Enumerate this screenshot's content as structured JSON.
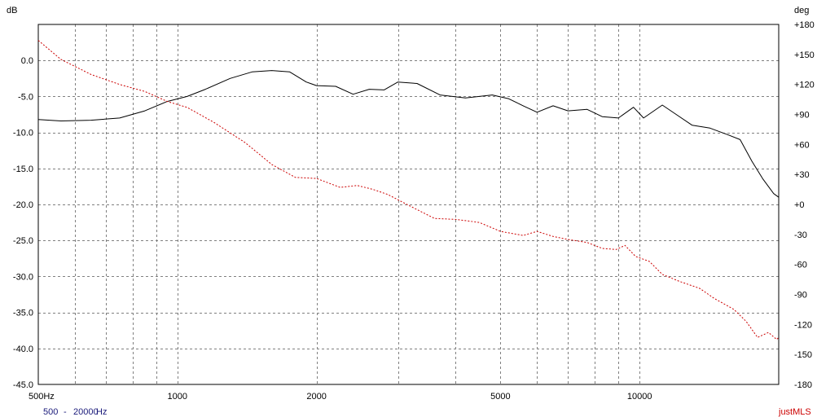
{
  "footer": {
    "range_from": "500",
    "range_sep": "-",
    "range_to": "20000",
    "range_unit": "Hz",
    "brand": "justMLS"
  },
  "chart_data": {
    "type": "line",
    "left_axis_label": "dB",
    "right_axis_label": "deg",
    "x_scale": "log",
    "xlim": [
      500,
      20000
    ],
    "ylim_left": [
      -45,
      5
    ],
    "ylim_right": [
      -180,
      180
    ],
    "x_tick_labels": [
      {
        "value": 500,
        "label": "500Hz"
      },
      {
        "value": 1000,
        "label": "1000"
      },
      {
        "value": 2000,
        "label": "2000"
      },
      {
        "value": 5000,
        "label": "5000"
      },
      {
        "value": 10000,
        "label": "10000"
      }
    ],
    "y_left_ticks": [
      "0.0",
      "-5.0",
      "-10.0",
      "-15.0",
      "-20.0",
      "-25.0",
      "-30.0",
      "-35.0",
      "-40.0",
      "-45.0"
    ],
    "y_left_tick_values": [
      0,
      -5,
      -10,
      -15,
      -20,
      -25,
      -30,
      -35,
      -40,
      -45
    ],
    "y_right_ticks": [
      "+180",
      "+150",
      "+120",
      "+90",
      "+60",
      "+30",
      "+0",
      "-30",
      "-60",
      "-90",
      "-120",
      "-150",
      "-180"
    ],
    "y_right_tick_values": [
      180,
      150,
      120,
      90,
      60,
      30,
      0,
      -30,
      -60,
      -90,
      -120,
      -150,
      -180
    ],
    "grid": true,
    "colors": {
      "magnitude": "#000000",
      "phase": "#cc0000",
      "grid": "#808080",
      "brand": "#cc0000",
      "range": "#1a1a7a"
    },
    "series": [
      {
        "role": "magnitude",
        "axis": "left",
        "line_style": "solid",
        "points": [
          [
            500,
            -8.2
          ],
          [
            560,
            -8.4
          ],
          [
            650,
            -8.3
          ],
          [
            750,
            -8.0
          ],
          [
            850,
            -7.0
          ],
          [
            950,
            -5.7
          ],
          [
            1050,
            -5.0
          ],
          [
            1150,
            -4.0
          ],
          [
            1300,
            -2.5
          ],
          [
            1450,
            -1.6
          ],
          [
            1600,
            -1.4
          ],
          [
            1750,
            -1.6
          ],
          [
            1900,
            -3.0
          ],
          [
            2000,
            -3.5
          ],
          [
            2200,
            -3.6
          ],
          [
            2400,
            -4.7
          ],
          [
            2600,
            -4.0
          ],
          [
            2800,
            -4.1
          ],
          [
            3000,
            -3.0
          ],
          [
            3300,
            -3.2
          ],
          [
            3700,
            -4.8
          ],
          [
            4200,
            -5.2
          ],
          [
            4800,
            -4.8
          ],
          [
            5200,
            -5.3
          ],
          [
            5600,
            -6.3
          ],
          [
            6000,
            -7.2
          ],
          [
            6500,
            -6.3
          ],
          [
            7000,
            -7.0
          ],
          [
            7700,
            -6.8
          ],
          [
            8300,
            -7.8
          ],
          [
            9000,
            -8.0
          ],
          [
            9700,
            -6.5
          ],
          [
            10200,
            -8.0
          ],
          [
            11200,
            -6.2
          ],
          [
            12000,
            -7.5
          ],
          [
            13000,
            -9.0
          ],
          [
            14200,
            -9.4
          ],
          [
            15500,
            -10.3
          ],
          [
            16500,
            -11.0
          ],
          [
            17500,
            -14.0
          ],
          [
            18500,
            -16.5
          ],
          [
            19500,
            -18.5
          ],
          [
            20000,
            -19.0
          ]
        ]
      },
      {
        "role": "phase",
        "axis": "right",
        "line_style": "dashed",
        "points": [
          [
            500,
            164
          ],
          [
            560,
            145
          ],
          [
            650,
            130
          ],
          [
            750,
            120
          ],
          [
            850,
            113
          ],
          [
            950,
            103
          ],
          [
            1050,
            97
          ],
          [
            1200,
            82
          ],
          [
            1400,
            62
          ],
          [
            1600,
            40
          ],
          [
            1800,
            27
          ],
          [
            2000,
            26
          ],
          [
            2250,
            17
          ],
          [
            2450,
            19
          ],
          [
            2650,
            15
          ],
          [
            2850,
            10
          ],
          [
            3200,
            -2
          ],
          [
            3600,
            -14
          ],
          [
            4000,
            -15
          ],
          [
            4500,
            -18
          ],
          [
            5000,
            -27
          ],
          [
            5600,
            -31
          ],
          [
            6000,
            -27
          ],
          [
            6500,
            -32
          ],
          [
            7000,
            -35
          ],
          [
            7700,
            -38
          ],
          [
            8300,
            -44
          ],
          [
            8900,
            -45
          ],
          [
            9300,
            -41
          ],
          [
            9800,
            -52
          ],
          [
            10500,
            -57
          ],
          [
            11200,
            -70
          ],
          [
            12200,
            -77
          ],
          [
            13500,
            -84
          ],
          [
            14500,
            -94
          ],
          [
            16000,
            -105
          ],
          [
            17000,
            -117
          ],
          [
            18000,
            -133
          ],
          [
            19000,
            -128
          ],
          [
            19800,
            -135
          ],
          [
            20000,
            -133
          ]
        ]
      }
    ]
  }
}
